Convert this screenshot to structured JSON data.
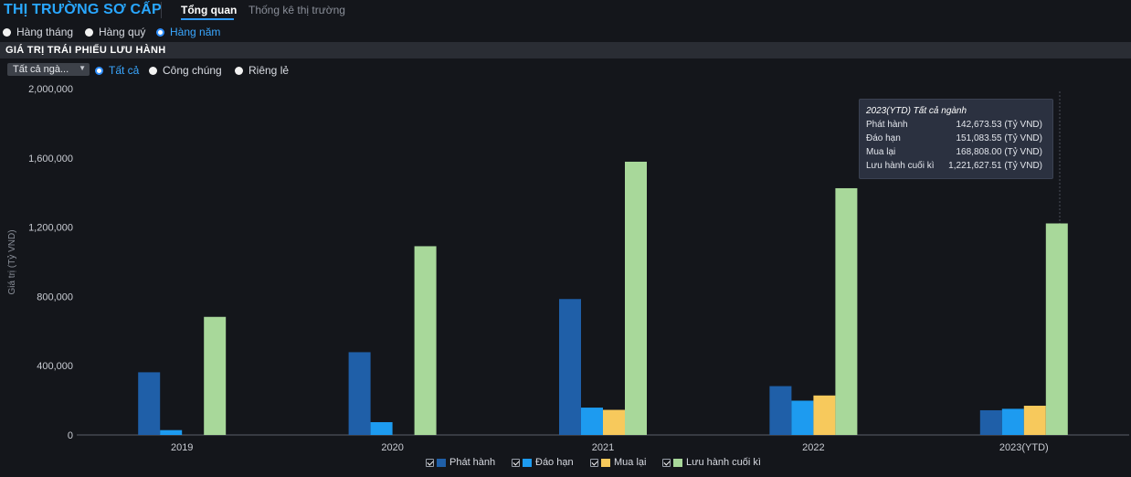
{
  "header": {
    "title": "THỊ TRƯỜNG SƠ CẤP",
    "tabs": [
      {
        "label": "Tổng quan",
        "active": true
      },
      {
        "label": "Thống kê thị trường",
        "active": false
      }
    ]
  },
  "period": {
    "options": [
      "Hàng tháng",
      "Hàng quý",
      "Hàng năm"
    ],
    "selected": "Hàng năm"
  },
  "section": {
    "title": "GIÁ TRỊ TRÁI PHIẾU LƯU HÀNH",
    "dropdown_value": "Tất cả ngà...",
    "filters": [
      "Tất cả",
      "Công chúng",
      "Riêng lẻ"
    ],
    "selected_filter": "Tất cả"
  },
  "colors": {
    "phat_hanh": "#1f5fa8",
    "dao_han": "#1d9bf0",
    "mua_lai": "#f7c95c",
    "luu_hanh": "#a8d89a",
    "accent": "#2f9bff"
  },
  "tooltip": {
    "title": "2023(YTD) Tất cả ngành",
    "rows": [
      {
        "label": "Phát hành",
        "value": "142,673.53 (Tỷ VND)"
      },
      {
        "label": "Đáo hạn",
        "value": "151,083.55 (Tỷ VND)"
      },
      {
        "label": "Mua lại",
        "value": "168,808.00 (Tỷ VND)"
      },
      {
        "label": "Lưu hành cuối kì",
        "value": "1,221,627.51 (Tỷ VND)"
      }
    ]
  },
  "chart_data": {
    "type": "bar",
    "title": "GIÁ TRỊ TRÁI PHIẾU LƯU HÀNH",
    "xlabel": "",
    "ylabel": "Giá trị (Tỷ VND)",
    "ylim": [
      0,
      2000000
    ],
    "yticks": [
      0,
      400000,
      800000,
      1200000,
      1600000,
      2000000
    ],
    "ytick_labels": [
      "0",
      "400,000",
      "800,000",
      "1,200,000",
      "1,600,000",
      "2,000,000"
    ],
    "categories": [
      "2019",
      "2020",
      "2021",
      "2022",
      "2023(YTD)"
    ],
    "series": [
      {
        "name": "Phát hành",
        "values": [
          362000,
          478000,
          785000,
          282000,
          142673.53
        ]
      },
      {
        "name": "Đáo hạn",
        "values": [
          28000,
          74000,
          158000,
          198000,
          151083.55
        ]
      },
      {
        "name": "Mua lại",
        "values": [
          0,
          0,
          145000,
          228000,
          168808.0
        ]
      },
      {
        "name": "Lưu hành cuối kì",
        "values": [
          682000,
          1090000,
          1578000,
          1425000,
          1221627.51
        ]
      }
    ],
    "legend": "bottom",
    "grid": false
  }
}
